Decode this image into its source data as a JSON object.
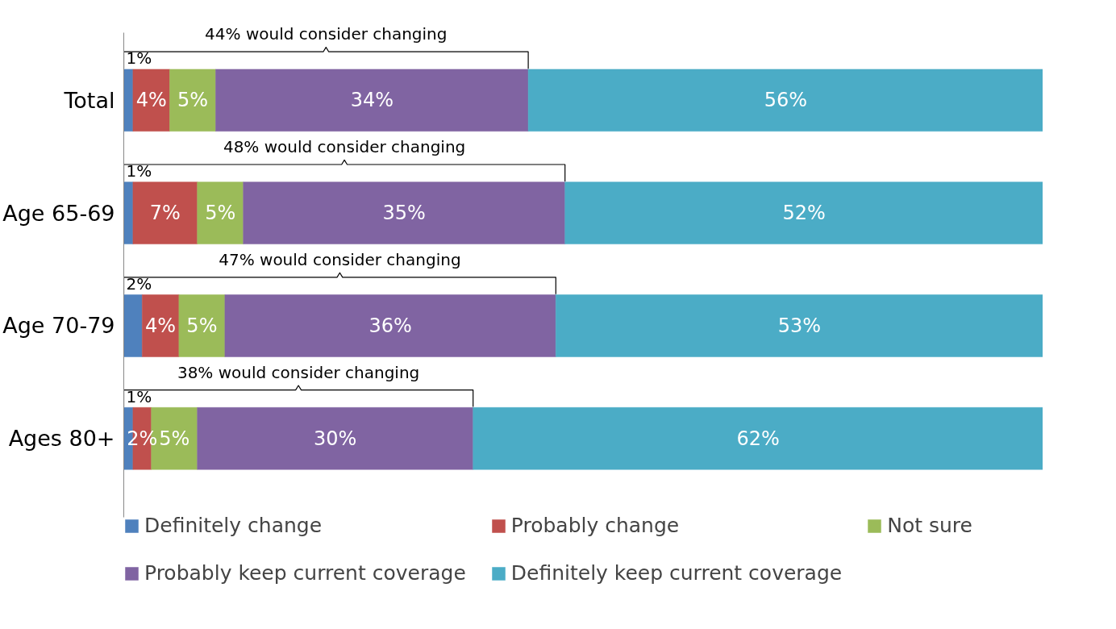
{
  "chart_data": {
    "type": "bar",
    "orientation": "horizontal",
    "stacked": true,
    "categories": [
      "Total",
      "Age 65-69",
      "Age 70-79",
      "Ages 80+"
    ],
    "series": [
      {
        "name": "Definitely change",
        "color": "#4f81bd",
        "values": [
          1,
          1,
          2,
          1
        ],
        "value_labels": [
          "1%",
          "1%",
          "2%",
          "1%"
        ]
      },
      {
        "name": "Probably change",
        "color": "#c0504d",
        "values": [
          4,
          7,
          4,
          2
        ],
        "value_labels": [
          "4%",
          "7%",
          "4%",
          "2%"
        ]
      },
      {
        "name": "Not sure",
        "color": "#9bbb59",
        "values": [
          5,
          5,
          5,
          5
        ],
        "value_labels": [
          "5%",
          "5%",
          "5%",
          "5%"
        ]
      },
      {
        "name": "Probably keep current coverage",
        "color": "#8064a2",
        "values": [
          34,
          35,
          36,
          30
        ],
        "value_labels": [
          "34%",
          "35%",
          "36%",
          "30%"
        ]
      },
      {
        "name": "Definitely keep current coverage",
        "color": "#4bacc6",
        "values": [
          56,
          52,
          53,
          62
        ],
        "value_labels": [
          "56%",
          "52%",
          "53%",
          "62%"
        ]
      }
    ],
    "tick_labels": "y",
    "legend": "bottom",
    "annotations": [
      "44% would consider changing",
      "48% would consider changing",
      "47% would consider changing",
      "38% would consider changing"
    ]
  }
}
